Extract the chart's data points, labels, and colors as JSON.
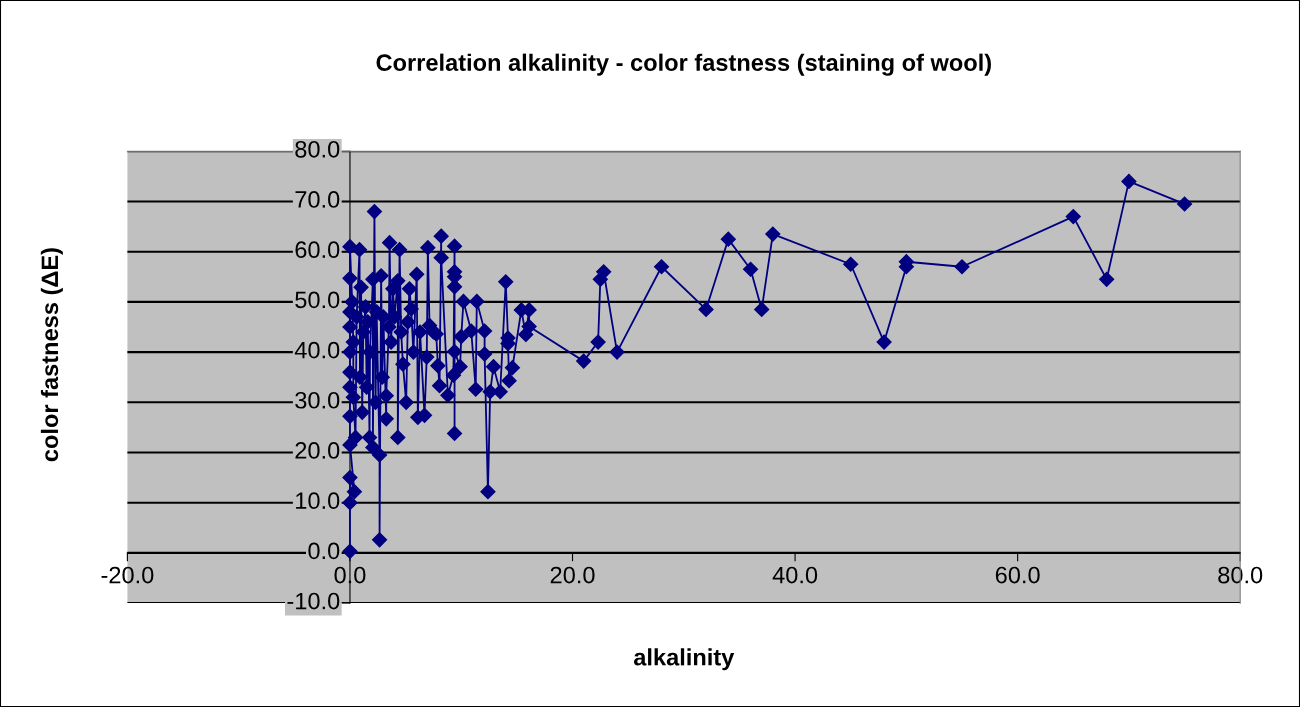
{
  "chart_data": {
    "type": "line",
    "title": "Correlation alkalinity - color fastness (staining of wool)",
    "xlabel": "alkalinity",
    "ylabel": "color fastness (ΔE)",
    "xlim": [
      -20,
      80
    ],
    "xticks": [
      {
        "value": -20,
        "label": "-20.0"
      },
      {
        "value": 0,
        "label": "0.0"
      },
      {
        "value": 20,
        "label": "20.0"
      },
      {
        "value": 40,
        "label": "40.0"
      },
      {
        "value": 60,
        "label": "60.0"
      },
      {
        "value": 80,
        "label": "80.0"
      }
    ],
    "ylim": [
      -10,
      80
    ],
    "yticks": [
      {
        "value": -10,
        "label": "-10.0"
      },
      {
        "value": 0,
        "label": "0.0"
      },
      {
        "value": 10,
        "label": "10.0"
      },
      {
        "value": 20,
        "label": "20.0"
      },
      {
        "value": 30,
        "label": "30.0"
      },
      {
        "value": 40,
        "label": "40.0"
      },
      {
        "value": 50,
        "label": "50.0"
      },
      {
        "value": 60,
        "label": "60.0"
      },
      {
        "value": 70,
        "label": "70.0"
      },
      {
        "value": 80,
        "label": "80.0"
      }
    ],
    "grid": "y",
    "legend": false,
    "marker": "diamond",
    "line_style": "solid",
    "series": [
      {
        "color": "#000080",
        "x": [
          0,
          0,
          0,
          0.4,
          0,
          0,
          0,
          0,
          0,
          0,
          0,
          0,
          0,
          0.2,
          0.3,
          0.3,
          0.5,
          0.6,
          0.86,
          0.9,
          1.0,
          1.1,
          1.2,
          1.4,
          1.5,
          1.6,
          1.76,
          1.8,
          2.06,
          2.06,
          2.2,
          2.3,
          2.4,
          2.66,
          2.66,
          2.8,
          2.9,
          3.0,
          3.26,
          3.26,
          3.5,
          3.56,
          3.7,
          3.86,
          4.0,
          4.3,
          4.3,
          4.46,
          4.6,
          4.76,
          5.05,
          5.2,
          5.35,
          5.5,
          5.7,
          6.0,
          6.1,
          6.3,
          6.7,
          6.9,
          7.0,
          7.15,
          7.5,
          7.75,
          7.9,
          8.05,
          8.2,
          8.2,
          8.8,
          9.3,
          9.4,
          9.4,
          9.4,
          9.4,
          9.4,
          9.4,
          9.9,
          10.0,
          10.2,
          10.9,
          11.3,
          11.4,
          12.1,
          12.1,
          12.4,
          12.6,
          12.9,
          13.5,
          14.0,
          14.2,
          14.2,
          14.3,
          14.6,
          15.4,
          15.8,
          16.1,
          16.1,
          21,
          22.3,
          22.5,
          22.8,
          24,
          28,
          32,
          34,
          36,
          37,
          38,
          45,
          48,
          50,
          50,
          55,
          65,
          68,
          70,
          75
        ],
        "values": [
          0.3,
          10,
          15,
          12.2,
          21.5,
          27.2,
          33,
          36,
          40,
          45,
          48,
          54.7,
          61,
          50,
          42,
          31,
          23,
          47,
          60.4,
          35,
          52.9,
          28,
          44,
          49,
          33,
          46,
          23,
          40,
          54.5,
          21,
          68,
          30,
          48,
          19.5,
          2.6,
          55.2,
          35,
          47,
          26.7,
          31.3,
          45,
          61.8,
          42,
          52.6,
          47,
          54.2,
          23,
          60.4,
          44,
          37.6,
          30,
          46,
          52.6,
          48.6,
          40,
          55.5,
          27,
          44,
          27.4,
          39,
          60.8,
          45.3,
          44,
          43.6,
          37.3,
          33.3,
          63.1,
          58.8,
          31.4,
          35.4,
          61.1,
          56,
          55,
          53,
          23.8,
          40.1,
          37.1,
          43.1,
          50.1,
          44.2,
          32.6,
          50.1,
          44.2,
          39.6,
          12.2,
          32.1,
          37.1,
          32.1,
          54.0,
          42.8,
          41.7,
          34.3,
          36.9,
          48.4,
          43.5,
          48.4,
          45.1,
          38.2,
          42,
          54.5,
          56,
          40,
          57,
          48.5,
          62.5,
          56.5,
          48.5,
          63.5,
          57.5,
          42,
          57,
          58,
          57,
          67,
          54.5,
          74,
          69.5
        ]
      }
    ]
  }
}
